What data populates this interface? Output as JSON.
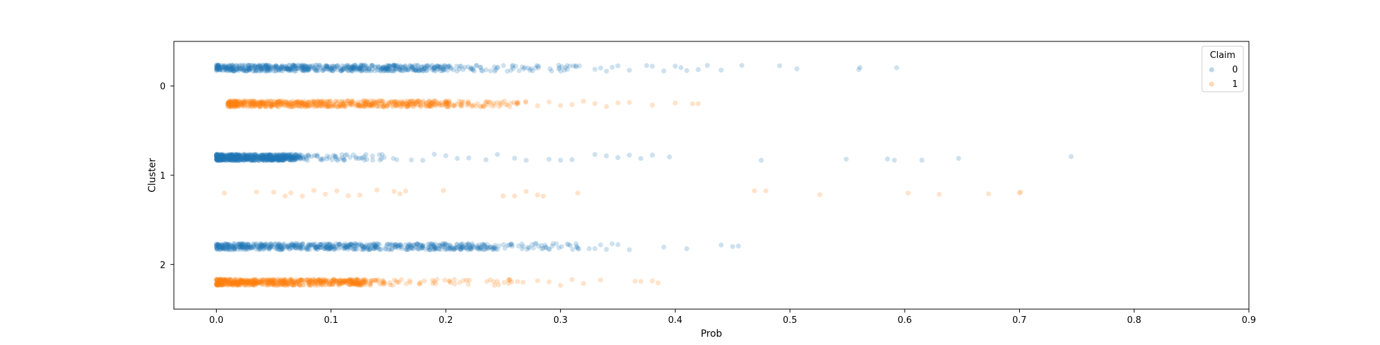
{
  "chart_data": {
    "type": "scatter",
    "subtype": "strip",
    "xlabel": "Prob",
    "ylabel": "Cluster",
    "xlim": [
      -0.037,
      0.9
    ],
    "xticks": [
      "0.0",
      "0.1",
      "0.2",
      "0.3",
      "0.4",
      "0.5",
      "0.6",
      "0.7",
      "0.8",
      "0.9"
    ],
    "xtick_values": [
      0,
      0.1,
      0.2,
      0.3,
      0.4,
      0.5,
      0.6,
      0.7,
      0.8,
      0.9
    ],
    "ylim": [
      -0.5,
      2.5
    ],
    "categories": [
      "0",
      "1",
      "2"
    ],
    "grid": false,
    "legend": {
      "title": "Claim",
      "placement": "top-right",
      "entries": [
        "0",
        "1"
      ]
    },
    "series": [
      {
        "name": "0",
        "color": "#1f77b4",
        "dodge": -0.2,
        "clusters": [
          {
            "cluster": "0",
            "dense": [
              0.0,
              0.2
            ],
            "moderate": [
              0.2,
              0.32
            ],
            "outliers": [
              0.33,
              0.335,
              0.34,
              0.345,
              0.35,
              0.36,
              0.375,
              0.38,
              0.39,
              0.4,
              0.405,
              0.41,
              0.42,
              0.428,
              0.44,
              0.458,
              0.491,
              0.506,
              0.56,
              0.561,
              0.593
            ]
          },
          {
            "cluster": "1",
            "dense": [
              0.0,
              0.07
            ],
            "moderate": [
              0.07,
              0.16
            ],
            "outliers": [
              0.17,
              0.18,
              0.19,
              0.2,
              0.21,
              0.22,
              0.235,
              0.245,
              0.26,
              0.27,
              0.29,
              0.3,
              0.31,
              0.33,
              0.34,
              0.35,
              0.36,
              0.37,
              0.38,
              0.395,
              0.475,
              0.549,
              0.585,
              0.591,
              0.615,
              0.647,
              0.745
            ]
          },
          {
            "cluster": "2",
            "dense": [
              0.0,
              0.23
            ],
            "moderate": [
              0.23,
              0.32
            ],
            "outliers": [
              0.325,
              0.33,
              0.335,
              0.34,
              0.345,
              0.35,
              0.36,
              0.39,
              0.41,
              0.44,
              0.45,
              0.455
            ]
          }
        ]
      },
      {
        "name": "1",
        "color": "#ff7f0e",
        "dodge": 0.2,
        "clusters": [
          {
            "cluster": "0",
            "dense": [
              0.01,
              0.2
            ],
            "moderate": [
              0.2,
              0.27
            ],
            "outliers": [
              0.28,
              0.29,
              0.3,
              0.31,
              0.32,
              0.33,
              0.34,
              0.35,
              0.36,
              0.38,
              0.4,
              0.415,
              0.42
            ]
          },
          {
            "cluster": "1",
            "dense": [
              0.0,
              0.0
            ],
            "moderate": [
              0.0,
              0.0
            ],
            "outliers": [
              0.007,
              0.035,
              0.05,
              0.06,
              0.065,
              0.075,
              0.085,
              0.095,
              0.105,
              0.115,
              0.125,
              0.14,
              0.155,
              0.16,
              0.165,
              0.198,
              0.25,
              0.26,
              0.27,
              0.28,
              0.285,
              0.315,
              0.469,
              0.479,
              0.526,
              0.603,
              0.63,
              0.673,
              0.7,
              0.701
            ]
          },
          {
            "cluster": "2",
            "dense": [
              0.0,
              0.13
            ],
            "moderate": [
              0.13,
              0.27
            ],
            "outliers": [
              0.28,
              0.29,
              0.3,
              0.31,
              0.32,
              0.335,
              0.365,
              0.37,
              0.38,
              0.385
            ]
          }
        ]
      }
    ]
  }
}
